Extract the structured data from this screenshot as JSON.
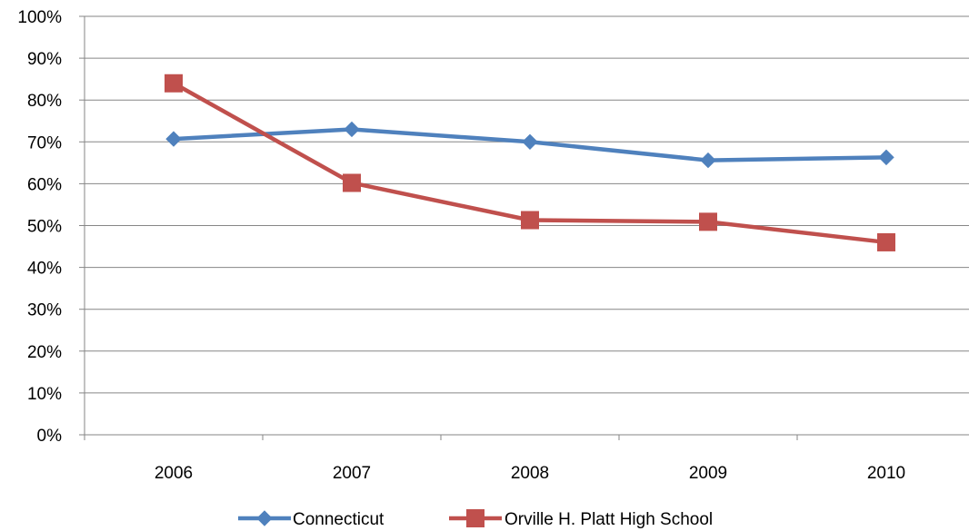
{
  "chart_data": {
    "type": "line",
    "title": "",
    "xlabel": "",
    "ylabel": "",
    "categories": [
      "2006",
      "2007",
      "2008",
      "2009",
      "2010"
    ],
    "ylim": [
      0,
      1
    ],
    "yticks": [
      "0%",
      "10%",
      "20%",
      "30%",
      "40%",
      "50%",
      "60%",
      "70%",
      "80%",
      "90%",
      "100%"
    ],
    "grid": true,
    "legend_position": "bottom",
    "series": [
      {
        "name": "Connecticut",
        "values": [
          0.707,
          0.73,
          0.7,
          0.656,
          0.663
        ],
        "color": "#4F81BD",
        "marker": "diamond"
      },
      {
        "name": "Orville H. Platt High School",
        "values": [
          0.84,
          0.602,
          0.513,
          0.509,
          0.46
        ],
        "color": "#C0504D",
        "marker": "square"
      }
    ]
  }
}
